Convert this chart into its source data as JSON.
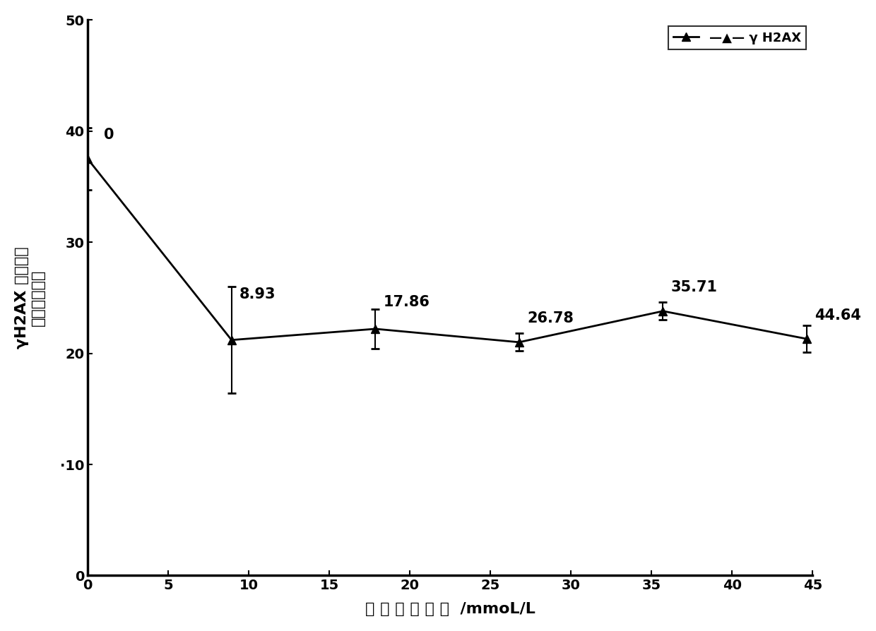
{
  "x": [
    0,
    8.93,
    17.86,
    26.78,
    35.71,
    44.64
  ],
  "y": [
    37.5,
    21.2,
    22.2,
    21.0,
    23.8,
    21.3
  ],
  "y_err": [
    2.8,
    4.8,
    1.8,
    0.8,
    0.8,
    1.2
  ],
  "x_labels": [
    0,
    5,
    10,
    15,
    20,
    25,
    30,
    35,
    40,
    45
  ],
  "y_labels": [
    0,
    10,
    20,
    30,
    40,
    50
  ],
  "annotations": [
    "0",
    "8.93",
    "17.86",
    "26.78",
    "35.71",
    "44.64"
  ],
  "annotation_offsets_x": [
    1.0,
    0.5,
    0.5,
    0.5,
    0.5,
    0.5
  ],
  "annotation_offsets_y": [
    1.5,
    3.5,
    1.8,
    1.5,
    1.5,
    1.5
  ],
  "xlabel_cn": "一 氧 化 碳 浓 度",
  "xlabel_en": "/mmoL/L",
  "ylabel_line1": "γH2AX 荷光强度",
  "ylabel_line2": "（任意单位）",
  "legend_label": "γ H2AX",
  "xlim": [
    0,
    45
  ],
  "ylim": [
    0,
    50
  ],
  "line_color": "#000000",
  "marker": "^",
  "markersize": 9,
  "linewidth": 2.0,
  "background_color": "#ffffff",
  "tick_fontsize": 14,
  "annotation_fontsize": 15,
  "label_fontsize": 16,
  "legend_fontsize": 13
}
